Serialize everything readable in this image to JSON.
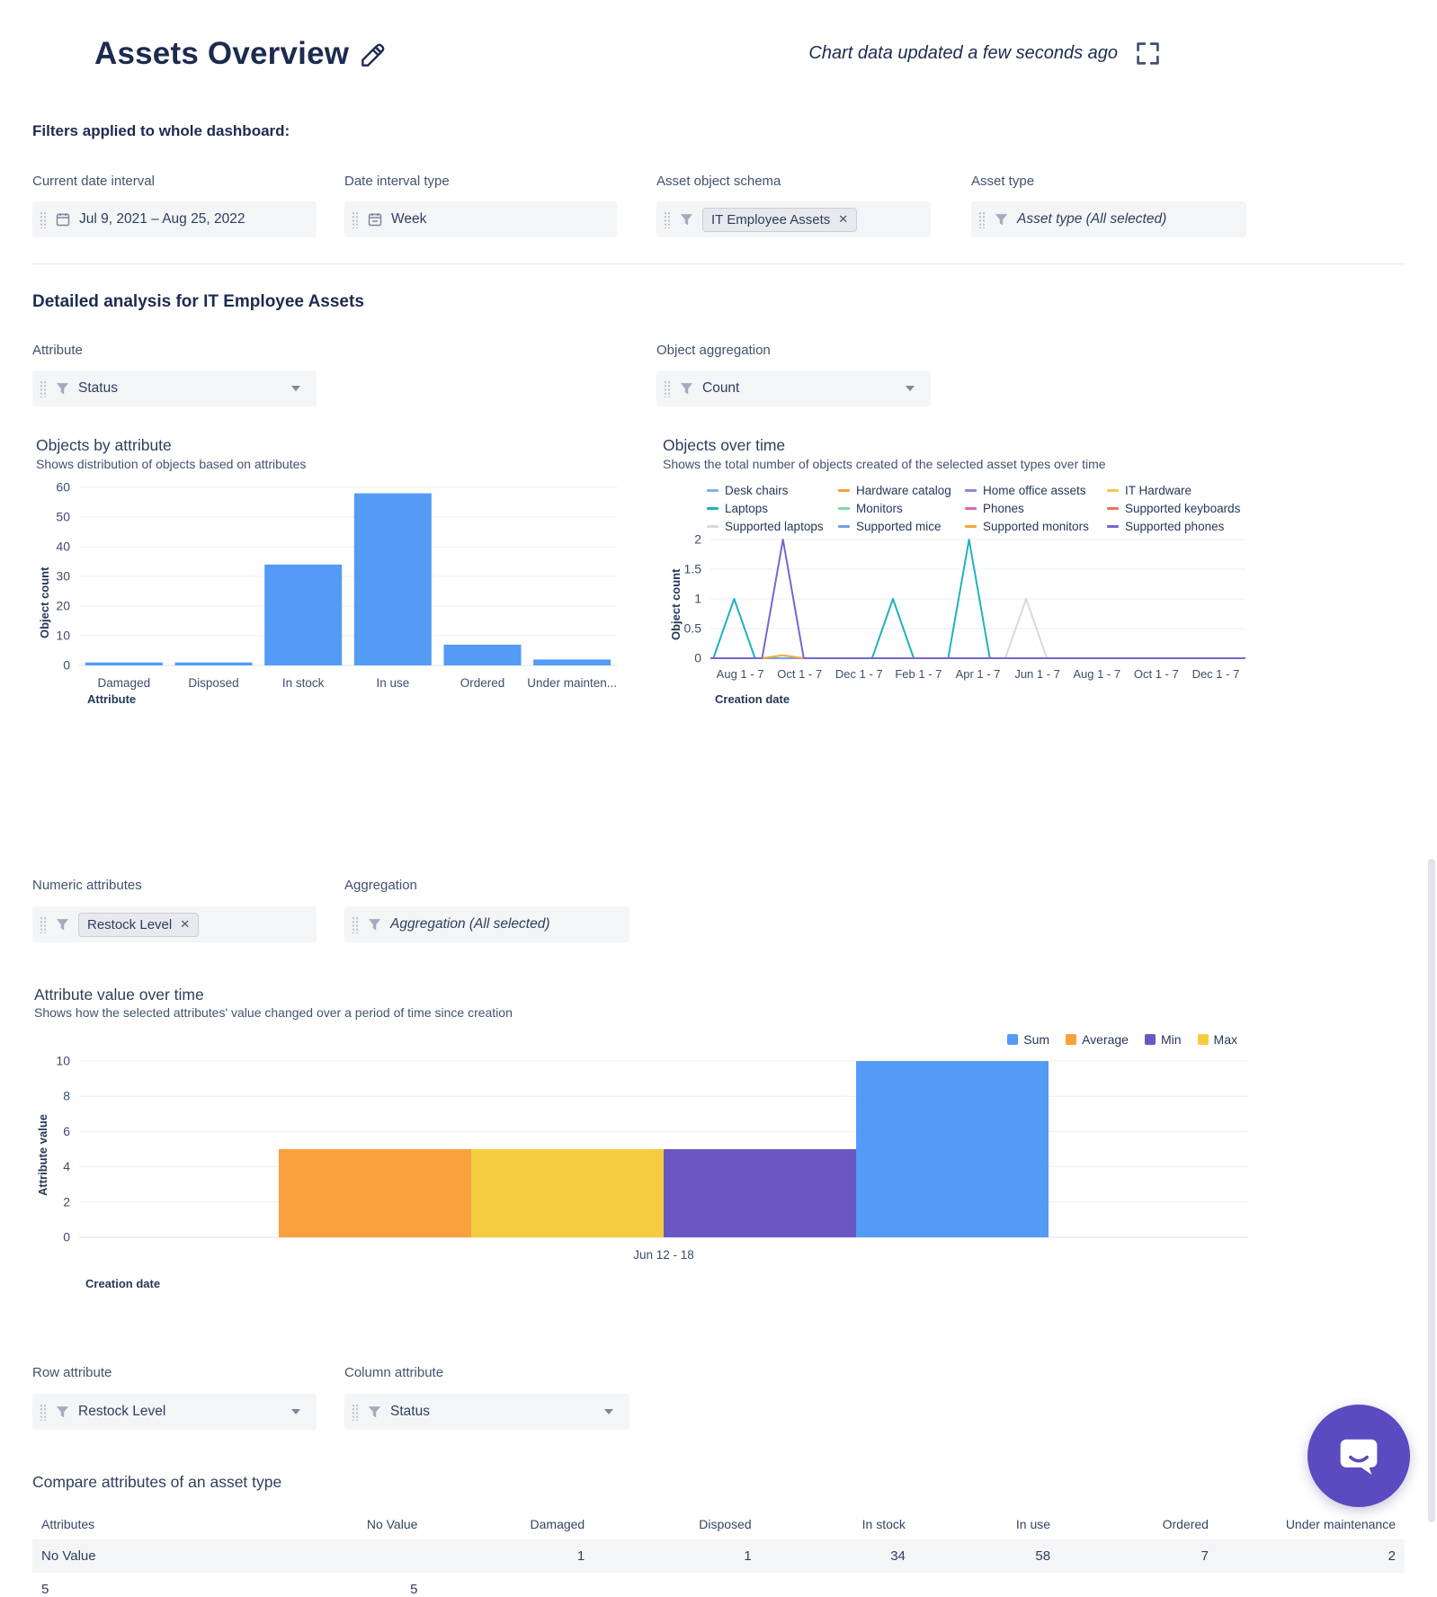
{
  "header": {
    "title": "Assets Overview",
    "updated": "Chart data updated a few seconds ago"
  },
  "filters": {
    "heading": "Filters applied to whole dashboard:",
    "date_interval": {
      "label": "Current date interval",
      "value": "Jul 9, 2021  –  Aug 25, 2022"
    },
    "interval_type": {
      "label": "Date interval type",
      "value": "Week"
    },
    "object_schema": {
      "label": "Asset object schema",
      "chip": "IT Employee Assets"
    },
    "asset_type": {
      "label": "Asset type",
      "value": "Asset type (All selected)"
    }
  },
  "analysis": {
    "heading": "Detailed analysis for IT Employee Assets",
    "attribute": {
      "label": "Attribute",
      "value": "Status"
    },
    "aggregation": {
      "label": "Object aggregation",
      "value": "Count"
    },
    "numeric_attributes": {
      "label": "Numeric attributes",
      "chip": "Restock Level"
    },
    "aggregation2": {
      "label": "Aggregation",
      "value": "Aggregation (All selected)"
    },
    "row_attribute": {
      "label": "Row attribute",
      "value": "Restock Level"
    },
    "column_attribute": {
      "label": "Column attribute",
      "value": "Status"
    },
    "compare_heading": "Compare attributes of an asset type"
  },
  "chart_data": [
    {
      "type": "bar",
      "title": "Objects by attribute",
      "subtitle": "Shows distribution of objects based on attributes",
      "categories": [
        "Damaged",
        "Disposed",
        "In stock",
        "In use",
        "Ordered",
        "Under mainten..."
      ],
      "values": [
        1,
        1,
        34,
        58,
        7,
        2
      ],
      "xlabel": "Attribute",
      "ylabel": "Object count",
      "ylim": [
        0,
        60
      ],
      "yticks": [
        0,
        10,
        20,
        30,
        40,
        50,
        60
      ],
      "bar_color": "#549bf5"
    },
    {
      "type": "line",
      "title": "Objects over time",
      "subtitle": "Shows the total number of objects created of the selected asset types over time",
      "xlabel": "Creation date",
      "ylabel": "Object count",
      "x_ticks": [
        "Aug 1 - 7",
        "Oct 1 - 7",
        "Dec 1 - 7",
        "Feb 1 - 7",
        "Apr 1 - 7",
        "Jun 1 - 7",
        "Aug 1 - 7",
        "Oct 1 - 7",
        "Dec 1 - 7"
      ],
      "ylim": [
        0,
        2
      ],
      "yticks": [
        0,
        0.5,
        1,
        1.5,
        2
      ],
      "series": [
        {
          "name": "Desk chairs",
          "color": "#7fb2e5",
          "points": []
        },
        {
          "name": "Hardware catalog",
          "color": "#f5a13d",
          "points": []
        },
        {
          "name": "Home office assets",
          "color": "#9b7fd6",
          "points": []
        },
        {
          "name": "IT Hardware",
          "color": "#f2c94c",
          "points": []
        },
        {
          "name": "Laptops",
          "color": "#22b1be",
          "points": [
            [
              -0.1,
              1
            ],
            [
              2.57,
              1
            ],
            [
              3.85,
              2
            ]
          ]
        },
        {
          "name": "Monitors",
          "color": "#7fd8a6",
          "points": []
        },
        {
          "name": "Phones",
          "color": "#d46cb1",
          "points": []
        },
        {
          "name": "Supported keyboards",
          "color": "#f0705a",
          "points": []
        },
        {
          "name": "Supported laptops",
          "color": "#d3dae3",
          "points": [
            [
              4.81,
              1
            ]
          ]
        },
        {
          "name": "Supported mice",
          "color": "#6d9fee",
          "points": []
        },
        {
          "name": "Supported monitors",
          "color": "#f4a93c",
          "points": [
            [
              0.72,
              0.05
            ]
          ]
        },
        {
          "name": "Supported phones",
          "color": "#7668ce",
          "points": [
            [
              0.72,
              2
            ]
          ]
        }
      ]
    },
    {
      "type": "bar",
      "title": "Attribute value over time",
      "subtitle": "Shows how the selected attributes' value changed over a period of time since creation",
      "xlabel": "Creation date",
      "ylabel": "Attribute value",
      "categories": [
        "Jun 12 - 18"
      ],
      "ylim": [
        0,
        10
      ],
      "yticks": [
        0,
        2,
        4,
        6,
        8,
        10
      ],
      "legend": [
        {
          "name": "Sum",
          "color": "#549bf5"
        },
        {
          "name": "Average",
          "color": "#f9a03f"
        },
        {
          "name": "Min",
          "color": "#6a57c2"
        },
        {
          "name": "Max",
          "color": "#f4cd3f"
        }
      ],
      "bars": [
        {
          "name": "Average",
          "value": 5
        },
        {
          "name": "Max",
          "value": 5
        },
        {
          "name": "Min",
          "value": 5
        },
        {
          "name": "Sum",
          "value": 10
        }
      ]
    }
  ],
  "table": {
    "headers": [
      "Attributes",
      "No Value",
      "Damaged",
      "Disposed",
      "In stock",
      "In use",
      "Ordered",
      "Under maintenance"
    ],
    "rows": [
      [
        "No Value",
        "",
        "1",
        "1",
        "34",
        "58",
        "7",
        "2"
      ],
      [
        "5",
        "5",
        "",
        "",
        "",
        "",
        "",
        ""
      ]
    ]
  }
}
